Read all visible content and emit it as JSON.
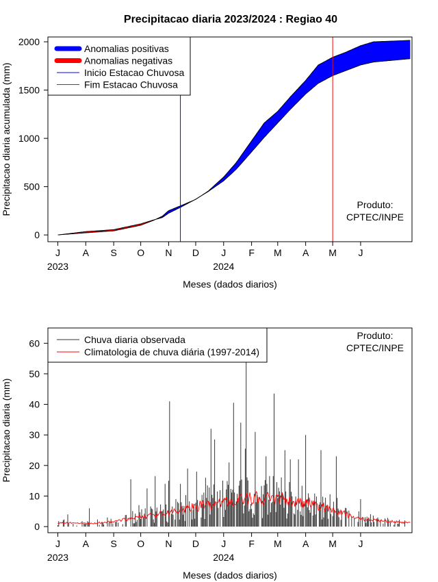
{
  "title": "Precipitacao diaria 2023/2024 : Regiao 40",
  "chart_data": [
    {
      "type": "area",
      "ylabel": "Precipitacao diaria acumulada (mm)",
      "xlabel": "Meses (dados diarios)",
      "x_range": [
        "2023-06-20",
        "2024-07-28"
      ],
      "ylim": [
        -70,
        2050
      ],
      "y_ticks": [
        0,
        500,
        1000,
        1500,
        2000
      ],
      "month_ticks": [
        {
          "date": "2023-07-01",
          "label": "J"
        },
        {
          "date": "2023-08-01",
          "label": "A"
        },
        {
          "date": "2023-09-01",
          "label": "S"
        },
        {
          "date": "2023-10-01",
          "label": "O"
        },
        {
          "date": "2023-11-01",
          "label": "N"
        },
        {
          "date": "2023-12-01",
          "label": "D"
        },
        {
          "date": "2024-01-01",
          "label": "J"
        },
        {
          "date": "2024-02-01",
          "label": "F"
        },
        {
          "date": "2024-03-01",
          "label": "M"
        },
        {
          "date": "2024-04-01",
          "label": "A"
        },
        {
          "date": "2024-05-01",
          "label": "M"
        },
        {
          "date": "2024-06-01",
          "label": "J"
        }
      ],
      "year_labels": [
        {
          "date": "2023-07-01",
          "label": "2023"
        },
        {
          "date": "2024-01-01",
          "label": "2024"
        }
      ],
      "legend": {
        "position": "top-left",
        "entries": [
          {
            "label": "Anomalias positivas",
            "color": "#0000ff",
            "style": "thick"
          },
          {
            "label": "Anomalias negativas",
            "color": "#ff0000",
            "style": "thick"
          },
          {
            "label": "Inicio Estacao Chuvosa",
            "color": "#0000ff",
            "style": "thin"
          },
          {
            "label": "Fim Estacao Chuvosa",
            "color": "#ff0000",
            "style": "thin"
          }
        ]
      },
      "rainy_season_start": "2023-11-14",
      "rainy_season_end": "2024-05-01",
      "observed_cumulative": [
        {
          "date": "2023-07-01",
          "value": 0
        },
        {
          "date": "2023-08-01",
          "value": 22
        },
        {
          "date": "2023-09-01",
          "value": 42
        },
        {
          "date": "2023-10-01",
          "value": 100
        },
        {
          "date": "2023-10-15",
          "value": 150
        },
        {
          "date": "2023-10-25",
          "value": 195
        },
        {
          "date": "2023-11-01",
          "value": 252
        },
        {
          "date": "2023-11-15",
          "value": 305
        },
        {
          "date": "2023-12-01",
          "value": 368
        },
        {
          "date": "2023-12-15",
          "value": 455
        },
        {
          "date": "2024-01-01",
          "value": 600
        },
        {
          "date": "2024-01-15",
          "value": 750
        },
        {
          "date": "2024-02-01",
          "value": 975
        },
        {
          "date": "2024-02-15",
          "value": 1160
        },
        {
          "date": "2024-03-01",
          "value": 1280
        },
        {
          "date": "2024-03-15",
          "value": 1430
        },
        {
          "date": "2024-04-01",
          "value": 1600
        },
        {
          "date": "2024-04-15",
          "value": 1760
        },
        {
          "date": "2024-05-01",
          "value": 1840
        },
        {
          "date": "2024-05-15",
          "value": 1890
        },
        {
          "date": "2024-06-01",
          "value": 1960
        },
        {
          "date": "2024-06-15",
          "value": 2000
        },
        {
          "date": "2024-07-26",
          "value": 2015
        }
      ],
      "climatology_cumulative": [
        {
          "date": "2023-07-01",
          "value": 0
        },
        {
          "date": "2023-08-01",
          "value": 35
        },
        {
          "date": "2023-09-01",
          "value": 55
        },
        {
          "date": "2023-10-01",
          "value": 115
        },
        {
          "date": "2023-10-15",
          "value": 155
        },
        {
          "date": "2023-10-25",
          "value": 180
        },
        {
          "date": "2023-11-01",
          "value": 225
        },
        {
          "date": "2023-11-15",
          "value": 290
        },
        {
          "date": "2023-12-01",
          "value": 370
        },
        {
          "date": "2023-12-15",
          "value": 450
        },
        {
          "date": "2024-01-01",
          "value": 560
        },
        {
          "date": "2024-01-15",
          "value": 680
        },
        {
          "date": "2024-02-01",
          "value": 860
        },
        {
          "date": "2024-02-15",
          "value": 1010
        },
        {
          "date": "2024-03-01",
          "value": 1160
        },
        {
          "date": "2024-03-15",
          "value": 1300
        },
        {
          "date": "2024-04-01",
          "value": 1460
        },
        {
          "date": "2024-04-15",
          "value": 1570
        },
        {
          "date": "2024-05-01",
          "value": 1650
        },
        {
          "date": "2024-05-15",
          "value": 1700
        },
        {
          "date": "2024-06-01",
          "value": 1760
        },
        {
          "date": "2024-06-15",
          "value": 1790
        },
        {
          "date": "2024-07-26",
          "value": 1825
        }
      ],
      "annotation": [
        "Produto:",
        "CPTEC/INPE"
      ]
    },
    {
      "type": "bar",
      "ylabel": "Precipitacao diaria (mm)",
      "xlabel": "Meses (dados diarios)",
      "x_range": [
        "2023-06-20",
        "2024-07-28"
      ],
      "ylim": [
        -2,
        65
      ],
      "y_ticks": [
        0,
        10,
        20,
        30,
        40,
        50,
        60
      ],
      "month_ticks": [
        {
          "date": "2023-07-01",
          "label": "J"
        },
        {
          "date": "2023-08-01",
          "label": "A"
        },
        {
          "date": "2023-09-01",
          "label": "S"
        },
        {
          "date": "2023-10-01",
          "label": "O"
        },
        {
          "date": "2023-11-01",
          "label": "N"
        },
        {
          "date": "2023-12-01",
          "label": "D"
        },
        {
          "date": "2024-01-01",
          "label": "J"
        },
        {
          "date": "2024-02-01",
          "label": "F"
        },
        {
          "date": "2024-03-01",
          "label": "M"
        },
        {
          "date": "2024-04-01",
          "label": "A"
        },
        {
          "date": "2024-05-01",
          "label": "M"
        },
        {
          "date": "2024-06-01",
          "label": "J"
        }
      ],
      "year_labels": [
        {
          "date": "2023-07-01",
          "label": "2023"
        },
        {
          "date": "2024-01-01",
          "label": "2024"
        }
      ],
      "legend": {
        "position": "top-left",
        "entries": [
          {
            "label": "Chuva diaria observada",
            "color": "#333333"
          },
          {
            "label": "Climatologia de chuva diária (1997-2014)",
            "color": "#ff0000"
          }
        ]
      },
      "observed_daily_peaks": [
        {
          "date": "2023-07-12",
          "value": 4
        },
        {
          "date": "2023-08-05",
          "value": 6
        },
        {
          "date": "2023-08-25",
          "value": 3
        },
        {
          "date": "2023-09-20",
          "value": 15.5
        },
        {
          "date": "2023-09-29",
          "value": 7
        },
        {
          "date": "2023-10-08",
          "value": 12.5
        },
        {
          "date": "2023-10-17",
          "value": 16.5
        },
        {
          "date": "2023-10-24",
          "value": 5
        },
        {
          "date": "2023-10-28",
          "value": 14
        },
        {
          "date": "2023-11-01",
          "value": 15
        },
        {
          "date": "2023-11-02",
          "value": 41
        },
        {
          "date": "2023-11-09",
          "value": 9
        },
        {
          "date": "2023-11-14",
          "value": 14
        },
        {
          "date": "2023-11-22",
          "value": 19
        },
        {
          "date": "2023-12-02",
          "value": 18
        },
        {
          "date": "2023-12-12",
          "value": 16
        },
        {
          "date": "2023-12-18",
          "value": 32
        },
        {
          "date": "2023-12-22",
          "value": 28.5
        },
        {
          "date": "2024-01-07",
          "value": 21
        },
        {
          "date": "2024-01-12",
          "value": 40.5
        },
        {
          "date": "2024-01-20",
          "value": 34
        },
        {
          "date": "2024-01-25",
          "value": 25.5
        },
        {
          "date": "2024-01-26",
          "value": 56
        },
        {
          "date": "2024-02-05",
          "value": 31
        },
        {
          "date": "2024-02-17",
          "value": 23
        },
        {
          "date": "2024-02-26",
          "value": 43.5
        },
        {
          "date": "2024-03-09",
          "value": 25
        },
        {
          "date": "2024-03-15",
          "value": 22
        },
        {
          "date": "2024-03-24",
          "value": 22
        },
        {
          "date": "2024-04-01",
          "value": 30
        },
        {
          "date": "2024-04-18",
          "value": 25
        },
        {
          "date": "2024-05-05",
          "value": 23
        },
        {
          "date": "2024-06-01",
          "value": 9
        },
        {
          "date": "2024-06-20",
          "value": 3
        },
        {
          "date": "2024-07-20",
          "value": 2
        }
      ],
      "climatology_daily": [
        {
          "date": "2023-07-01",
          "value": 1.3
        },
        {
          "date": "2023-08-01",
          "value": 1.0
        },
        {
          "date": "2023-09-01",
          "value": 1.6
        },
        {
          "date": "2023-10-01",
          "value": 3.2
        },
        {
          "date": "2023-11-01",
          "value": 4.5
        },
        {
          "date": "2023-12-01",
          "value": 6.5
        },
        {
          "date": "2024-01-01",
          "value": 8.0
        },
        {
          "date": "2024-02-01",
          "value": 9.2
        },
        {
          "date": "2024-03-01",
          "value": 9.0
        },
        {
          "date": "2024-04-01",
          "value": 8.0
        },
        {
          "date": "2024-05-01",
          "value": 5.5
        },
        {
          "date": "2024-06-01",
          "value": 2.5
        },
        {
          "date": "2024-07-26",
          "value": 1.2
        }
      ],
      "annotation": [
        "Produto:",
        "CPTEC/INPE"
      ]
    }
  ]
}
